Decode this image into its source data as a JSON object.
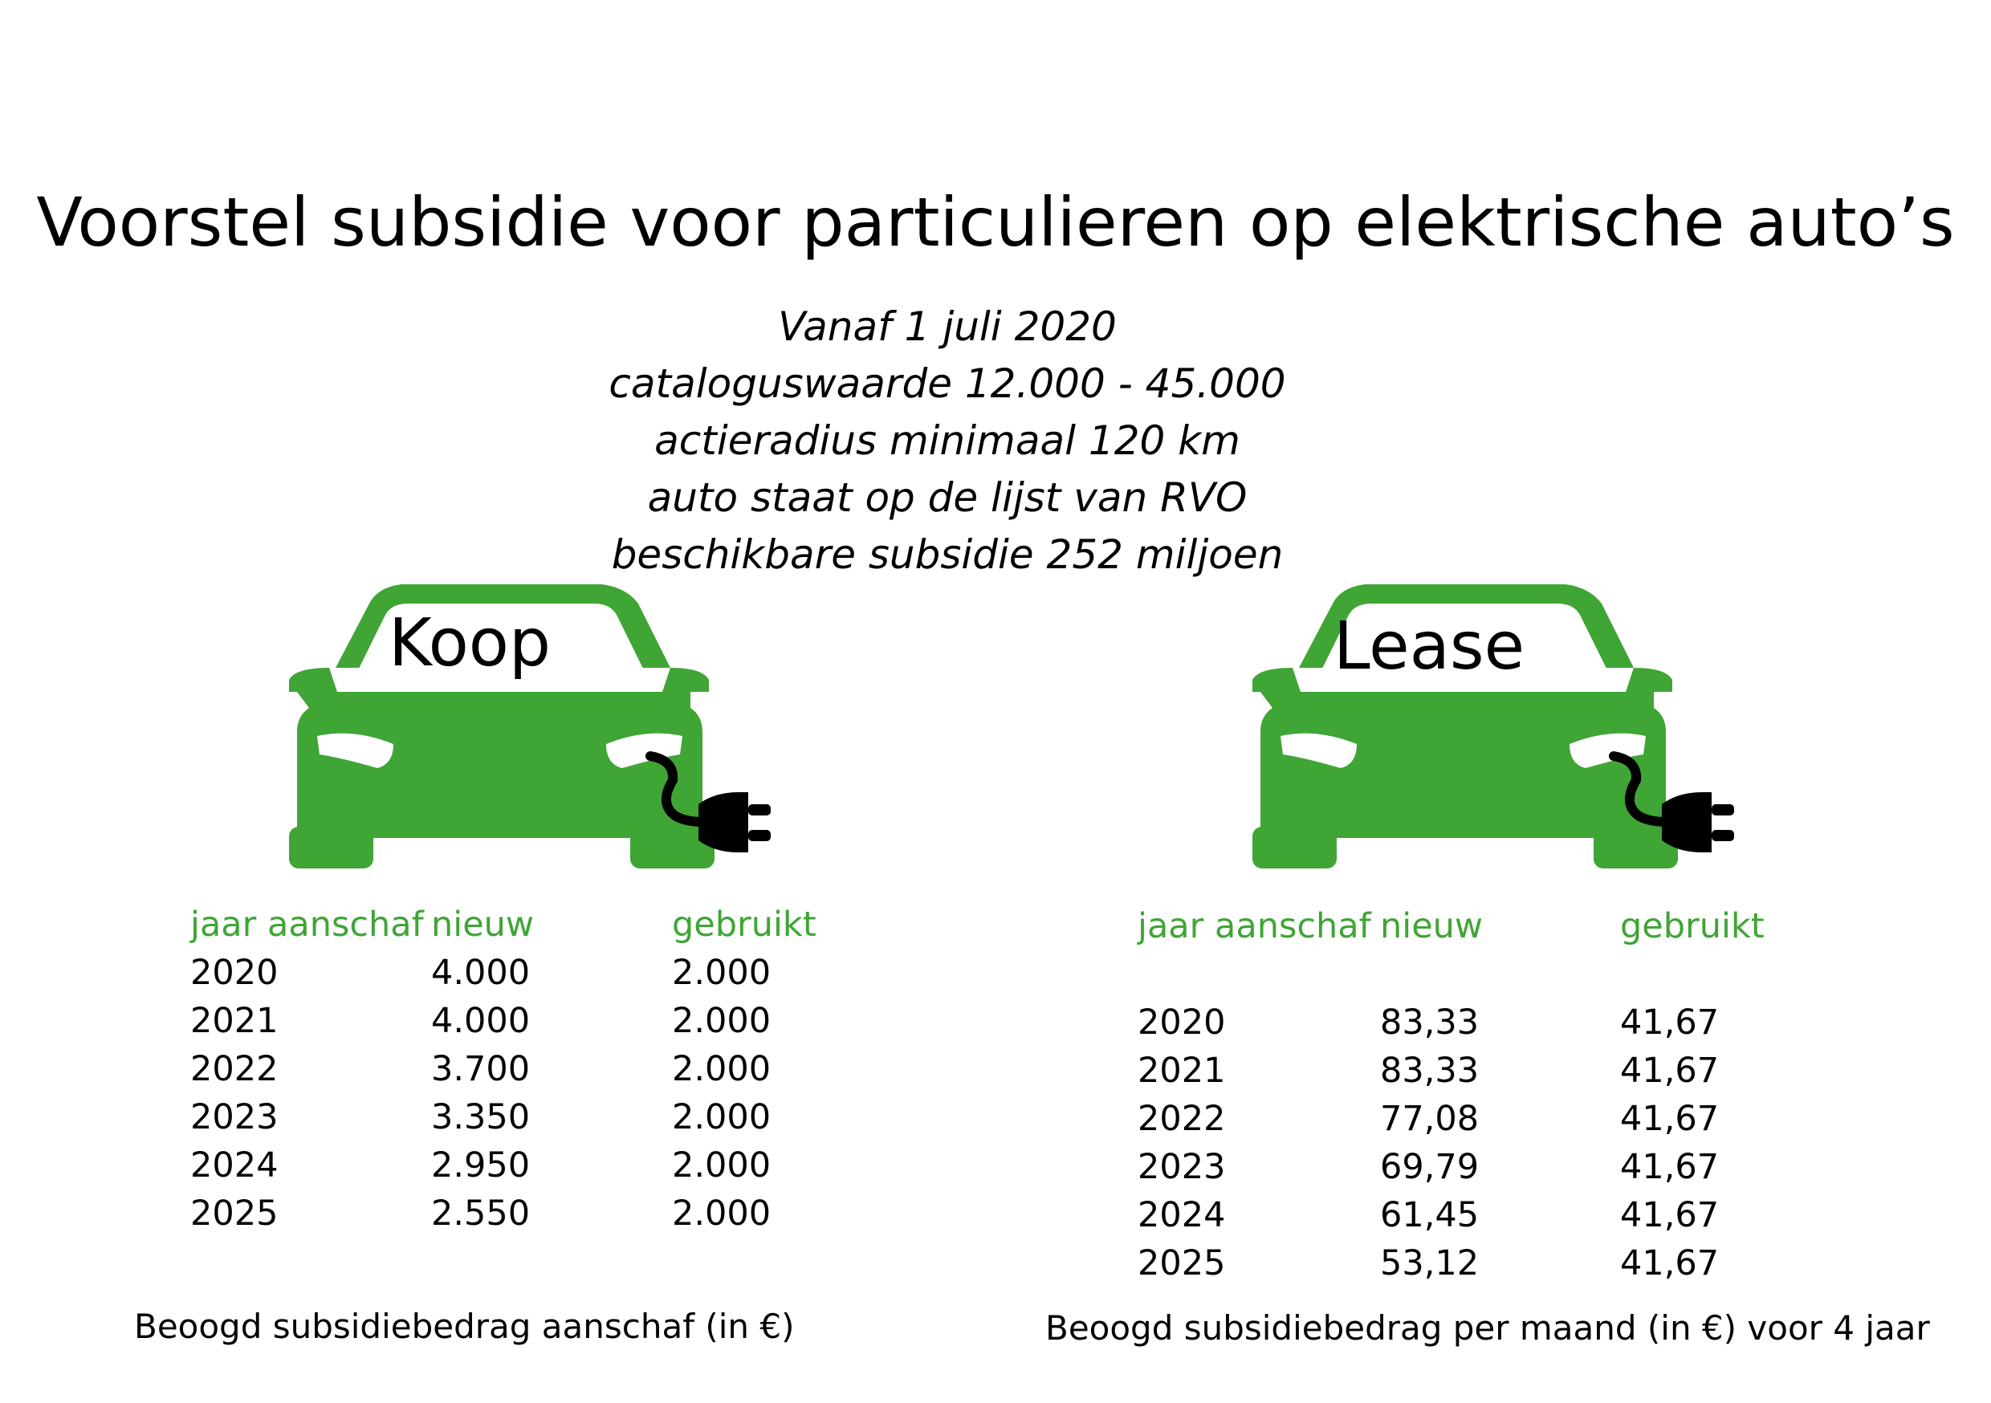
{
  "title": "Voorstel subsidie voor particulieren op elektrische auto’s",
  "conditions": [
    "Vanaf 1 juli 2020",
    "cataloguswaarde 12.000 - 45.000",
    "actieradius minimaal 120 km",
    "auto staat op de lijst van RVO",
    "beschikbare subsidie 252 miljoen"
  ],
  "colors": {
    "accent_green": "#3fa535",
    "plug_black": "#000000"
  },
  "koop": {
    "icon": "electric-car-icon",
    "label": "Koop",
    "headers": {
      "year": "jaar aanschaf",
      "new": "nieuw",
      "used": "gebruikt"
    },
    "rows": [
      {
        "year": "2020",
        "new": "4.000",
        "used": "2.000"
      },
      {
        "year": "2021",
        "new": "4.000",
        "used": "2.000"
      },
      {
        "year": "2022",
        "new": "3.700",
        "used": "2.000"
      },
      {
        "year": "2023",
        "new": "3.350",
        "used": "2.000"
      },
      {
        "year": "2024",
        "new": "2.950",
        "used": "2.000"
      },
      {
        "year": "2025",
        "new": "2.550",
        "used": "2.000"
      }
    ],
    "footnote": "Beoogd subsidiebedrag aanschaf (in €)"
  },
  "lease": {
    "icon": "electric-car-icon",
    "label": "Lease",
    "headers": {
      "year": "jaar aanschaf",
      "new": "nieuw",
      "used": "gebruikt"
    },
    "rows": [
      {
        "year": "2020",
        "new": "83,33",
        "used": "41,67"
      },
      {
        "year": "2021",
        "new": "83,33",
        "used": "41,67"
      },
      {
        "year": "2022",
        "new": "77,08",
        "used": "41,67"
      },
      {
        "year": "2023",
        "new": "69,79",
        "used": "41,67"
      },
      {
        "year": "2024",
        "new": "61,45",
        "used": "41,67"
      },
      {
        "year": "2025",
        "new": "53,12",
        "used": "41,67"
      }
    ],
    "footnote": "Beoogd subsidiebedrag per maand (in €) voor 4 jaar"
  }
}
